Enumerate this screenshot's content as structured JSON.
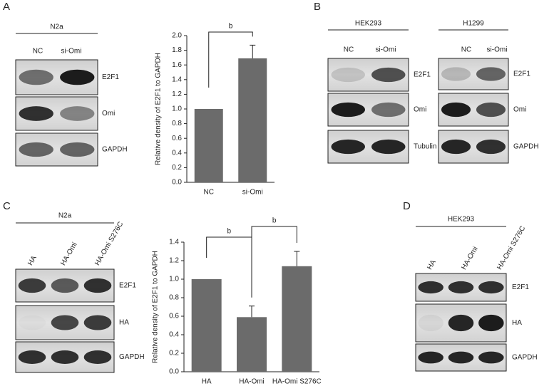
{
  "chart_data": [
    {
      "type": "bar",
      "y_label": "Relative density of E2F1 to GAPDH",
      "categories": [
        "NC",
        "si-Omi"
      ],
      "values": [
        1.0,
        1.69
      ],
      "errors": [
        0,
        0.18
      ],
      "color": "#6b6b6b",
      "ylim": [
        0,
        2.0
      ],
      "yticks": [
        {
          "value": 0,
          "label": "0.0"
        },
        0.2,
        0.4,
        0.6,
        0.8,
        {
          "value": 1,
          "label": "1.0"
        },
        1.2,
        1.4,
        1.6,
        1.8,
        {
          "value": 2,
          "label": "2.0"
        }
      ],
      "annotations": [
        "b"
      ]
    },
    {
      "type": "bar",
      "y_label": "Relative density of E2F1 to GAPDH",
      "categories": [
        "HA",
        "HA-Omi",
        "HA-Omi S276C"
      ],
      "values": [
        1.0,
        0.59,
        1.14
      ],
      "errors": [
        0,
        0.12,
        0.16
      ],
      "color": "#6b6b6b",
      "ylim": [
        0,
        1.4
      ],
      "yticks": [
        {
          "value": 0,
          "label": "0.0"
        },
        0.2,
        0.4,
        0.6,
        0.8,
        {
          "value": 1,
          "label": "1.0"
        },
        1.2,
        1.4
      ],
      "annotations": [
        "b",
        "b"
      ]
    }
  ],
  "panels": [
    {
      "label": "A",
      "groups": [
        {
          "cell_line": "N2a",
          "lanes": [
            "NC",
            "si-Omi"
          ],
          "blots": [
            "E2F1",
            "Omi",
            "GAPDH"
          ]
        }
      ]
    },
    {
      "label": "B",
      "groups": [
        {
          "cell_line": "HEK293",
          "lanes": [
            "NC",
            "si-Omi"
          ],
          "blots": [
            "E2F1",
            "Omi",
            "Tubulin"
          ]
        },
        {
          "cell_line": "H1299",
          "lanes": [
            "NC",
            "si-Omi"
          ],
          "blots": [
            "E2F1",
            "Omi",
            "GAPDH"
          ]
        }
      ]
    },
    {
      "label": "C",
      "groups": [
        {
          "cell_line": "N2a",
          "lanes": [
            "HA",
            "HA-Omi",
            "HA-Omi S276C"
          ],
          "blots": [
            "E2F1",
            "HA",
            "GAPDH"
          ]
        }
      ]
    },
    {
      "label": "D",
      "groups": [
        {
          "cell_line": "HEK293",
          "lanes": [
            "HA",
            "HA-Omi",
            "HA-Omi S276C"
          ],
          "blots": [
            "E2F1",
            "HA",
            "GAPDH"
          ]
        }
      ]
    }
  ]
}
